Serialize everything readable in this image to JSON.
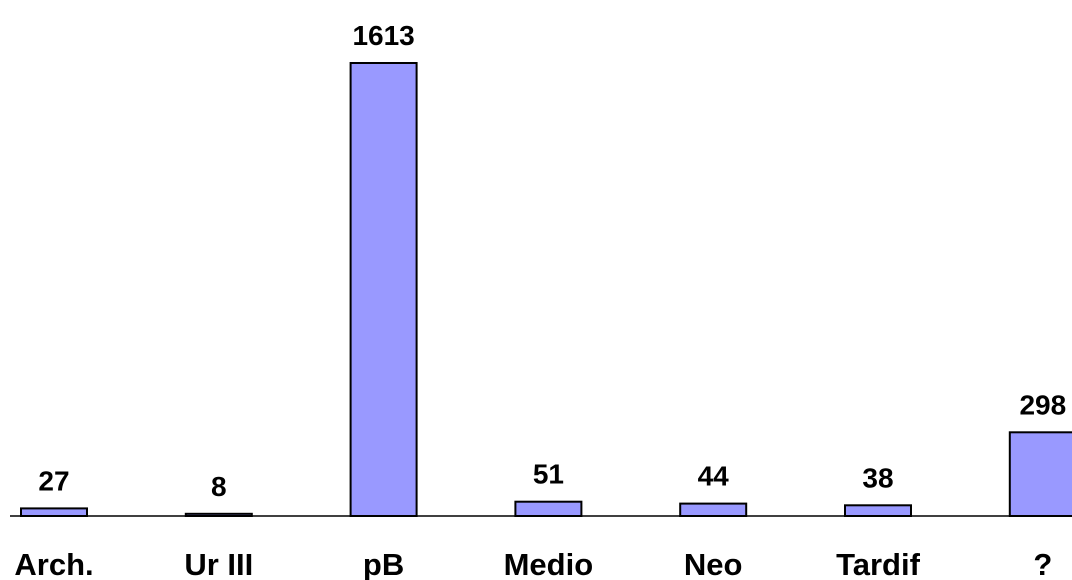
{
  "chart_data": {
    "type": "bar",
    "categories": [
      "Arch.",
      "Ur III",
      "pB",
      "Medio",
      "Neo",
      "Tardif",
      "?"
    ],
    "values": [
      27,
      8,
      1613,
      51,
      44,
      38,
      298
    ],
    "data_labels": [
      "27",
      "8",
      "1613",
      "51",
      "44",
      "38",
      "298"
    ],
    "title": "",
    "xlabel": "",
    "ylabel": "",
    "ylim": [
      0,
      1613
    ],
    "grid": false,
    "legend": "none",
    "bar_color": "#9999ff",
    "bar_outline": "#000000"
  }
}
